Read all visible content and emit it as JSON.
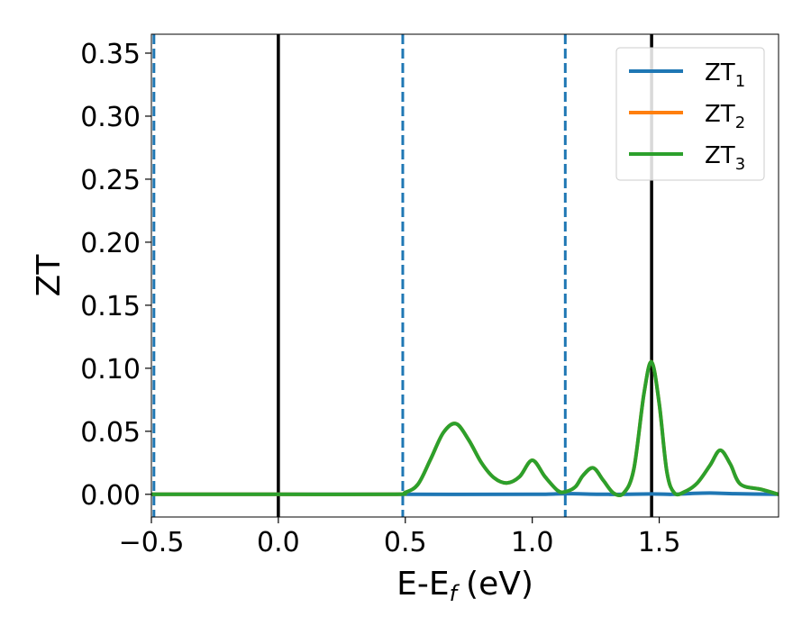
{
  "chart_data": {
    "type": "line",
    "xlabel": "E-E",
    "xlabel_sub": "f",
    "xlabel_unit": "(eV)",
    "ylabel": "ZT",
    "xlim": [
      -0.5,
      1.97
    ],
    "ylim": [
      -0.018,
      0.365
    ],
    "xticks": [
      -0.5,
      0.0,
      0.5,
      1.0,
      1.5
    ],
    "xtick_labels": [
      "−0.5",
      "0.0",
      "0.5",
      "1.0",
      "1.5"
    ],
    "yticks": [
      0.0,
      0.05,
      0.1,
      0.15,
      0.2,
      0.25,
      0.3,
      0.35
    ],
    "ytick_labels": [
      "0.00",
      "0.05",
      "0.10",
      "0.15",
      "0.20",
      "0.25",
      "0.30",
      "0.35"
    ],
    "legend_position": "top-right",
    "vlines": [
      {
        "x": -0.49,
        "style": "dashed",
        "color": "#1f77b4"
      },
      {
        "x": 0.0,
        "style": "solid",
        "color": "#000000"
      },
      {
        "x": 0.49,
        "style": "dashed",
        "color": "#1f77b4"
      },
      {
        "x": 1.13,
        "style": "dashed",
        "color": "#1f77b4"
      },
      {
        "x": 1.47,
        "style": "solid",
        "color": "#000000"
      }
    ],
    "series": [
      {
        "name": "ZT",
        "sub": "1",
        "color": "#1f77b4",
        "x": [
          -0.5,
          0.0,
          0.5,
          1.0,
          1.13,
          1.3,
          1.47,
          1.55,
          1.62,
          1.7,
          1.8,
          1.97
        ],
        "y": [
          0.0,
          0.0,
          0.0,
          0.0,
          0.0005,
          0.0,
          0.0003,
          0.0,
          0.0006,
          0.001,
          0.0005,
          0.0
        ]
      },
      {
        "name": "ZT",
        "sub": "2",
        "color": "#ff7f0e",
        "x": [
          -0.5,
          0.0,
          0.45,
          0.5,
          0.55,
          0.6,
          0.65,
          0.7,
          0.75,
          0.8,
          0.85,
          0.9,
          0.95,
          1.0,
          1.05,
          1.1,
          1.13,
          1.17,
          1.2,
          1.24,
          1.28,
          1.32,
          1.36,
          1.4,
          1.44,
          1.47,
          1.5,
          1.53,
          1.56,
          1.6,
          1.65,
          1.7,
          1.74,
          1.78,
          1.82,
          1.9,
          1.97
        ],
        "y": [
          0.0,
          0.0,
          0.0,
          0.0015,
          0.008,
          0.028,
          0.049,
          0.056,
          0.043,
          0.025,
          0.013,
          0.009,
          0.014,
          0.027,
          0.014,
          0.003,
          0.002,
          0.006,
          0.015,
          0.021,
          0.011,
          0.001,
          0.001,
          0.02,
          0.08,
          0.105,
          0.072,
          0.018,
          0.001,
          0.002,
          0.009,
          0.023,
          0.035,
          0.024,
          0.008,
          0.004,
          0.0
        ]
      },
      {
        "name": "ZT",
        "sub": "3",
        "color": "#2ca02c",
        "x": [
          -0.5,
          0.0,
          0.45,
          0.5,
          0.55,
          0.6,
          0.65,
          0.7,
          0.75,
          0.8,
          0.85,
          0.9,
          0.95,
          1.0,
          1.05,
          1.1,
          1.13,
          1.17,
          1.2,
          1.24,
          1.28,
          1.32,
          1.36,
          1.4,
          1.44,
          1.47,
          1.5,
          1.53,
          1.56,
          1.6,
          1.65,
          1.7,
          1.74,
          1.78,
          1.82,
          1.9,
          1.97
        ],
        "y": [
          0.0,
          0.0,
          0.0,
          0.0015,
          0.008,
          0.028,
          0.049,
          0.056,
          0.043,
          0.025,
          0.013,
          0.009,
          0.014,
          0.027,
          0.014,
          0.003,
          0.002,
          0.006,
          0.015,
          0.021,
          0.011,
          0.001,
          0.001,
          0.02,
          0.08,
          0.105,
          0.072,
          0.018,
          0.001,
          0.002,
          0.009,
          0.023,
          0.035,
          0.024,
          0.008,
          0.004,
          0.0
        ]
      }
    ]
  }
}
